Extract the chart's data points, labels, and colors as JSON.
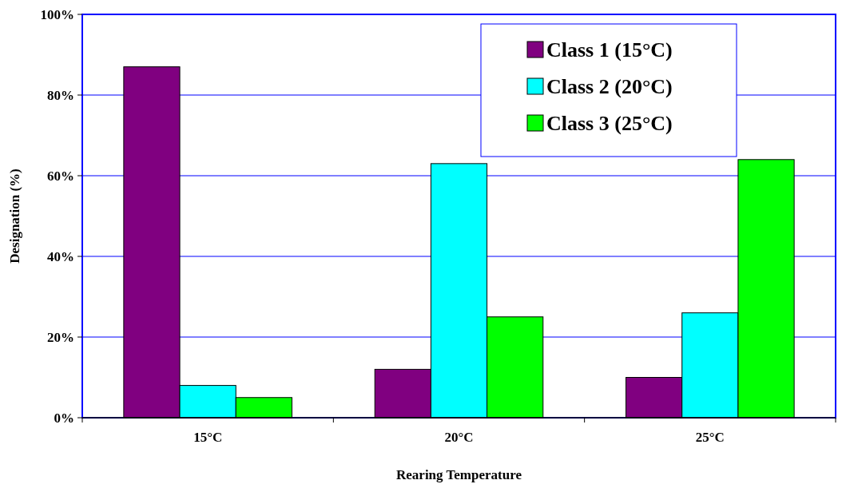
{
  "chart_data": {
    "type": "bar",
    "xlabel": "Rearing Temperature",
    "ylabel": "Designation (%)",
    "categories": [
      "15°C",
      "20°C",
      "25°C"
    ],
    "series": [
      {
        "name": "Class 1 (15°C)",
        "color": "#800080",
        "values": [
          87,
          12,
          10
        ]
      },
      {
        "name": "Class 2 (20°C)",
        "color": "#00ffff",
        "values": [
          8,
          63,
          26
        ]
      },
      {
        "name": "Class 3 (25°C)",
        "color": "#00ff00",
        "values": [
          5,
          25,
          64
        ]
      }
    ],
    "ylim": [
      0,
      100
    ],
    "yticks": [
      {
        "value": 0,
        "label": "0%"
      },
      {
        "value": 20,
        "label": "20%"
      },
      {
        "value": 40,
        "label": "40%"
      },
      {
        "value": 60,
        "label": "60%"
      },
      {
        "value": 80,
        "label": "80%"
      },
      {
        "value": 100,
        "label": "100%"
      }
    ],
    "grid": "y",
    "legend": "top right"
  }
}
